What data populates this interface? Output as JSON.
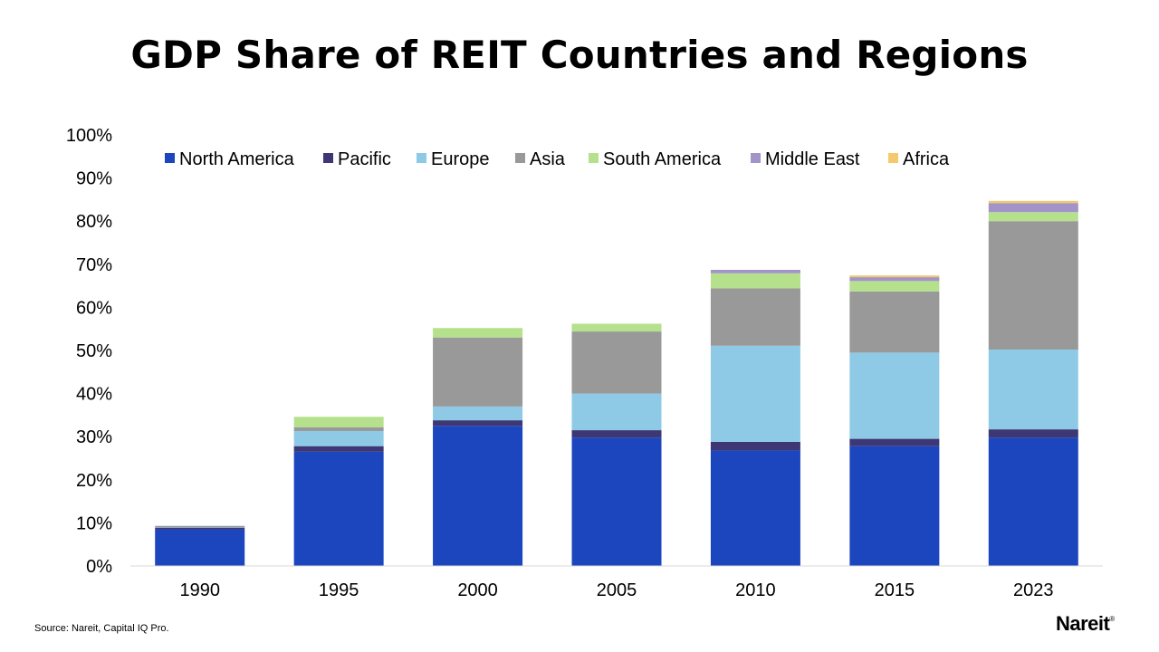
{
  "chart_data": {
    "type": "bar",
    "stacked": true,
    "title": "GDP Share of REIT Countries and Regions",
    "xlabel": "",
    "ylabel": "",
    "ylim": [
      0,
      100
    ],
    "yticks": [
      "0%",
      "10%",
      "20%",
      "30%",
      "40%",
      "50%",
      "60%",
      "70%",
      "80%",
      "90%",
      "100%"
    ],
    "legend_position": "top",
    "categories": [
      "1990",
      "1995",
      "2000",
      "2005",
      "2010",
      "2015",
      "2023"
    ],
    "series": [
      {
        "name": "North America",
        "color": "#1c46bd",
        "values": [
          8.5,
          26.5,
          32.5,
          29.8,
          26.8,
          27.8,
          29.8
        ]
      },
      {
        "name": "Pacific",
        "color": "#3e3775",
        "values": [
          0.4,
          1.3,
          1.3,
          1.7,
          2.0,
          1.7,
          1.9
        ]
      },
      {
        "name": "Europe",
        "color": "#8ecae6",
        "values": [
          0.1,
          3.5,
          3.2,
          8.5,
          22.3,
          20.0,
          18.5
        ]
      },
      {
        "name": "Asia",
        "color": "#999999",
        "values": [
          0.3,
          0.9,
          16.0,
          14.4,
          13.3,
          14.2,
          29.8
        ]
      },
      {
        "name": "South America",
        "color": "#b5e08c",
        "values": [
          0.0,
          2.4,
          2.2,
          1.8,
          3.5,
          2.4,
          2.1
        ]
      },
      {
        "name": "Middle East",
        "color": "#a294c9",
        "values": [
          0.0,
          0.0,
          0.0,
          0.0,
          0.8,
          0.9,
          2.1
        ]
      },
      {
        "name": "Africa",
        "color": "#f5c96b",
        "values": [
          0.0,
          0.0,
          0.0,
          0.0,
          0.0,
          0.4,
          0.5
        ]
      }
    ]
  },
  "source": "Source: Nareit, Capital IQ Pro.",
  "logo": {
    "name": "Nareit",
    "mark": "®"
  }
}
